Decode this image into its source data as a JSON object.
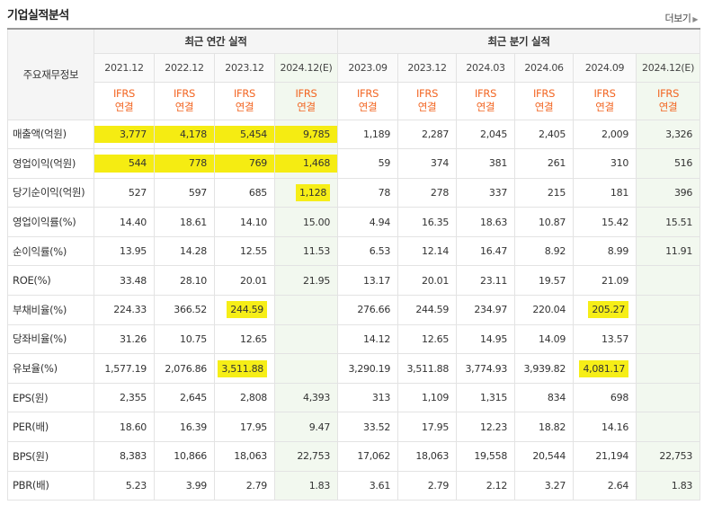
{
  "header": {
    "title": "기업실적분석",
    "more_label": "더보기"
  },
  "table": {
    "corner_label": "주요재무정보",
    "groups": {
      "annual": "최근 연간 실적",
      "quarterly": "최근 분기 실적"
    },
    "periods": [
      "2021.12",
      "2022.12",
      "2023.12",
      "2024.12(E)",
      "2023.09",
      "2023.12",
      "2024.03",
      "2024.06",
      "2024.09",
      "2024.12(E)"
    ],
    "standard_line1": "IFRS",
    "standard_line2": "연결",
    "rows": [
      {
        "label": "매출액(억원)",
        "values": [
          "3,777",
          "4,178",
          "5,454",
          "9,785",
          "1,189",
          "2,287",
          "2,045",
          "2,405",
          "2,009",
          "3,326"
        ]
      },
      {
        "label": "영업이익(억원)",
        "values": [
          "544",
          "778",
          "769",
          "1,468",
          "59",
          "374",
          "381",
          "261",
          "310",
          "516"
        ]
      },
      {
        "label": "당기순이익(억원)",
        "values": [
          "527",
          "597",
          "685",
          "1,128",
          "78",
          "278",
          "337",
          "215",
          "181",
          "396"
        ]
      },
      {
        "label": "영업이익률(%)",
        "values": [
          "14.40",
          "18.61",
          "14.10",
          "15.00",
          "4.94",
          "16.35",
          "18.63",
          "10.87",
          "15.42",
          "15.51"
        ]
      },
      {
        "label": "순이익률(%)",
        "values": [
          "13.95",
          "14.28",
          "12.55",
          "11.53",
          "6.53",
          "12.14",
          "16.47",
          "8.92",
          "8.99",
          "11.91"
        ]
      },
      {
        "label": "ROE(%)",
        "values": [
          "33.48",
          "28.10",
          "20.01",
          "21.95",
          "13.17",
          "20.01",
          "23.11",
          "19.57",
          "21.09",
          ""
        ]
      },
      {
        "label": "부채비율(%)",
        "values": [
          "224.33",
          "366.52",
          "244.59",
          "",
          "276.66",
          "244.59",
          "234.97",
          "220.04",
          "205.27",
          ""
        ]
      },
      {
        "label": "당좌비율(%)",
        "values": [
          "31.26",
          "10.75",
          "12.65",
          "",
          "14.12",
          "12.65",
          "14.95",
          "14.09",
          "13.57",
          ""
        ]
      },
      {
        "label": "유보율(%)",
        "values": [
          "1,577.19",
          "2,076.86",
          "3,511.88",
          "",
          "3,290.19",
          "3,511.88",
          "3,774.93",
          "3,939.82",
          "4,081.17",
          ""
        ]
      },
      {
        "label": "EPS(원)",
        "values": [
          "2,355",
          "2,645",
          "2,808",
          "4,393",
          "313",
          "1,109",
          "1,315",
          "834",
          "698",
          ""
        ]
      },
      {
        "label": "PER(배)",
        "values": [
          "18.60",
          "16.39",
          "17.95",
          "9.47",
          "33.52",
          "17.95",
          "12.23",
          "18.82",
          "14.16",
          ""
        ]
      },
      {
        "label": "BPS(원)",
        "values": [
          "8,383",
          "10,866",
          "18,063",
          "22,753",
          "17,062",
          "18,063",
          "19,558",
          "20,544",
          "21,194",
          "22,753"
        ]
      },
      {
        "label": "PBR(배)",
        "values": [
          "5.23",
          "3.99",
          "2.79",
          "1.83",
          "3.61",
          "2.79",
          "2.12",
          "3.27",
          "2.64",
          "1.83"
        ]
      }
    ]
  },
  "colors": {
    "highlight": "#f6ee17",
    "ifrs_orange": "#f26522",
    "estimate_bg": "#f2f8ef"
  }
}
